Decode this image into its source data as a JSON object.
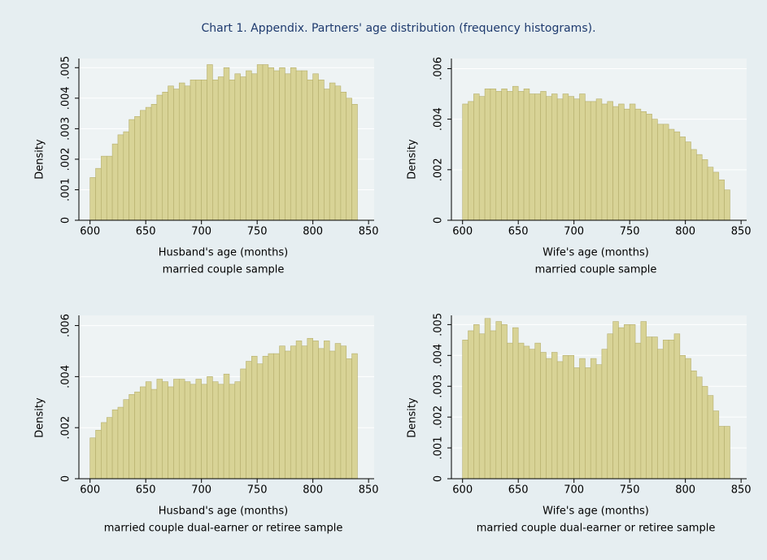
{
  "title": "Chart 1. Appendix. Partners' age distribution (frequency histograms).",
  "chart_data": [
    {
      "type": "histogram",
      "ylabel": "Density",
      "xlabel": "Husband's age (months)",
      "note": "married couple sample",
      "color": "#d8d396",
      "grid": true,
      "xlim": [
        590,
        855
      ],
      "ylim": [
        0,
        0.0053
      ],
      "xticks": [
        600,
        650,
        700,
        750,
        800,
        850
      ],
      "yticks": [
        0,
        {
          "value": 0.001,
          "label": ".001"
        },
        {
          "value": 0.002,
          "label": ".002"
        },
        {
          "value": 0.003,
          "label": ".003"
        },
        {
          "value": 0.004,
          "label": ".004"
        },
        {
          "value": 0.005,
          "label": ".005"
        }
      ],
      "bins": [
        600,
        605,
        610,
        615,
        620,
        625,
        630,
        635,
        640,
        645,
        650,
        655,
        660,
        665,
        670,
        675,
        680,
        685,
        690,
        695,
        700,
        705,
        710,
        715,
        720,
        725,
        730,
        735,
        740,
        745,
        750,
        755,
        760,
        765,
        770,
        775,
        780,
        785,
        790,
        795,
        800,
        805,
        810,
        815,
        820,
        825,
        830,
        835,
        840
      ],
      "values": [
        0.0014,
        0.0017,
        0.0021,
        0.0021,
        0.0025,
        0.0028,
        0.0029,
        0.0033,
        0.0034,
        0.0036,
        0.0037,
        0.0038,
        0.0041,
        0.0042,
        0.0044,
        0.0043,
        0.0045,
        0.0044,
        0.0046,
        0.0046,
        0.0046,
        0.0051,
        0.0046,
        0.0047,
        0.005,
        0.0046,
        0.0048,
        0.0047,
        0.0049,
        0.0048,
        0.0051,
        0.0051,
        0.005,
        0.0049,
        0.005,
        0.0048,
        0.005,
        0.0049,
        0.0049,
        0.0046,
        0.0048,
        0.0046,
        0.0043,
        0.0045,
        0.0044,
        0.0042,
        0.004,
        0.0038
      ]
    },
    {
      "type": "histogram",
      "ylabel": "Density",
      "xlabel": "Wife's age (months)",
      "note": "married couple sample",
      "color": "#d8d396",
      "grid": true,
      "xlim": [
        590,
        855
      ],
      "ylim": [
        0,
        0.0064
      ],
      "xticks": [
        600,
        650,
        700,
        750,
        800,
        850
      ],
      "yticks": [
        0,
        {
          "value": 0.002,
          "label": ".002"
        },
        {
          "value": 0.004,
          "label": ".004"
        },
        {
          "value": 0.006,
          "label": ".006"
        }
      ],
      "bins": [
        600,
        605,
        610,
        615,
        620,
        625,
        630,
        635,
        640,
        645,
        650,
        655,
        660,
        665,
        670,
        675,
        680,
        685,
        690,
        695,
        700,
        705,
        710,
        715,
        720,
        725,
        730,
        735,
        740,
        745,
        750,
        755,
        760,
        765,
        770,
        775,
        780,
        785,
        790,
        795,
        800,
        805,
        810,
        815,
        820,
        825,
        830,
        835,
        840
      ],
      "values": [
        0.0046,
        0.0047,
        0.005,
        0.0049,
        0.0052,
        0.0052,
        0.0051,
        0.0052,
        0.0051,
        0.0053,
        0.0051,
        0.0052,
        0.005,
        0.005,
        0.0051,
        0.0049,
        0.005,
        0.0048,
        0.005,
        0.0049,
        0.0048,
        0.005,
        0.0047,
        0.0047,
        0.0048,
        0.0046,
        0.0047,
        0.0045,
        0.0046,
        0.0044,
        0.0046,
        0.0044,
        0.0043,
        0.0042,
        0.004,
        0.0038,
        0.0038,
        0.0036,
        0.0035,
        0.0033,
        0.0031,
        0.0028,
        0.0026,
        0.0024,
        0.0021,
        0.0019,
        0.0016,
        0.0012
      ]
    },
    {
      "type": "histogram",
      "ylabel": "Density",
      "xlabel": "Husband's age (months)",
      "note": "married couple dual-earner or retiree sample",
      "color": "#d8d396",
      "grid": true,
      "xlim": [
        590,
        855
      ],
      "ylim": [
        0,
        0.0064
      ],
      "xticks": [
        600,
        650,
        700,
        750,
        800,
        850
      ],
      "yticks": [
        0,
        {
          "value": 0.002,
          "label": ".002"
        },
        {
          "value": 0.004,
          "label": ".004"
        },
        {
          "value": 0.006,
          "label": ".006"
        }
      ],
      "bins": [
        600,
        605,
        610,
        615,
        620,
        625,
        630,
        635,
        640,
        645,
        650,
        655,
        660,
        665,
        670,
        675,
        680,
        685,
        690,
        695,
        700,
        705,
        710,
        715,
        720,
        725,
        730,
        735,
        740,
        745,
        750,
        755,
        760,
        765,
        770,
        775,
        780,
        785,
        790,
        795,
        800,
        805,
        810,
        815,
        820,
        825,
        830,
        835,
        840
      ],
      "values": [
        0.0016,
        0.0019,
        0.0022,
        0.0024,
        0.0027,
        0.0028,
        0.0031,
        0.0033,
        0.0034,
        0.0036,
        0.0038,
        0.0035,
        0.0039,
        0.0038,
        0.0036,
        0.0039,
        0.0039,
        0.0038,
        0.0037,
        0.0039,
        0.0037,
        0.004,
        0.0038,
        0.0037,
        0.0041,
        0.0037,
        0.0038,
        0.0043,
        0.0046,
        0.0048,
        0.0045,
        0.0048,
        0.0049,
        0.0049,
        0.0052,
        0.005,
        0.0052,
        0.0054,
        0.0052,
        0.0055,
        0.0054,
        0.0051,
        0.0054,
        0.005,
        0.0053,
        0.0052,
        0.0047,
        0.0049
      ]
    },
    {
      "type": "histogram",
      "ylabel": "Density",
      "xlabel": "Wife's age (months)",
      "note": "married couple dual-earner or retiree sample",
      "color": "#d8d396",
      "grid": true,
      "xlim": [
        590,
        855
      ],
      "ylim": [
        0,
        0.0053
      ],
      "xticks": [
        600,
        650,
        700,
        750,
        800,
        850
      ],
      "yticks": [
        0,
        {
          "value": 0.001,
          "label": ".001"
        },
        {
          "value": 0.002,
          "label": ".002"
        },
        {
          "value": 0.003,
          "label": ".003"
        },
        {
          "value": 0.004,
          "label": ".004"
        },
        {
          "value": 0.005,
          "label": ".005"
        }
      ],
      "bins": [
        600,
        605,
        610,
        615,
        620,
        625,
        630,
        635,
        640,
        645,
        650,
        655,
        660,
        665,
        670,
        675,
        680,
        685,
        690,
        695,
        700,
        705,
        710,
        715,
        720,
        725,
        730,
        735,
        740,
        745,
        750,
        755,
        760,
        765,
        770,
        775,
        780,
        785,
        790,
        795,
        800,
        805,
        810,
        815,
        820,
        825,
        830,
        835,
        840
      ],
      "values": [
        0.0045,
        0.0048,
        0.005,
        0.0047,
        0.0052,
        0.0048,
        0.0051,
        0.005,
        0.0044,
        0.0049,
        0.0044,
        0.0043,
        0.0042,
        0.0044,
        0.0041,
        0.0039,
        0.0041,
        0.0038,
        0.004,
        0.004,
        0.0036,
        0.0039,
        0.0036,
        0.0039,
        0.0037,
        0.0042,
        0.0047,
        0.0051,
        0.0049,
        0.005,
        0.005,
        0.0044,
        0.0051,
        0.0046,
        0.0046,
        0.0042,
        0.0045,
        0.0045,
        0.0047,
        0.004,
        0.0039,
        0.0035,
        0.0033,
        0.003,
        0.0027,
        0.0022,
        0.0017,
        0.0017
      ]
    }
  ]
}
